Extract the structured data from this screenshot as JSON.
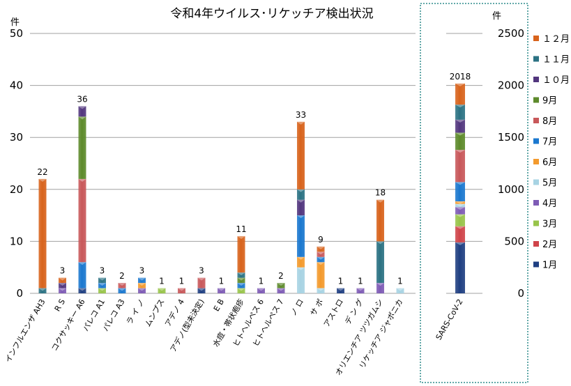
{
  "chart_data": [
    {
      "type": "bar",
      "stacked": true,
      "title": "令和4年ウイルス･リケッチア検出状況",
      "ylabel": "件",
      "ylim": [
        0,
        50
      ],
      "yticks": [
        0,
        10,
        20,
        30,
        40,
        50
      ],
      "grid": true,
      "categories": [
        "インフルエンザ AH3",
        "R S",
        "コクサッキー A6",
        "パレコ A1",
        "パレコ A3",
        "ラ イ ノ",
        "ムンプス",
        "アデノ 4",
        "アデノ(型未決定)",
        "E B",
        "水痘・帯状疱疹",
        "ヒトヘルペス 6",
        "ヒトヘルペス 7",
        "ノ ロ",
        "サ ポ",
        "アストロ",
        "デ ン グ",
        "オリエンチア ツツガムシ",
        "リケッチア ジャポニカ"
      ],
      "totals": [
        22,
        3,
        36,
        3,
        2,
        3,
        1,
        1,
        3,
        1,
        11,
        1,
        2,
        33,
        9,
        1,
        1,
        18,
        1
      ],
      "series": [
        {
          "name": "1月",
          "values": [
            0,
            0,
            1,
            0,
            0,
            0,
            0,
            0,
            1,
            0,
            0,
            0,
            0,
            0,
            0,
            1,
            0,
            0,
            0
          ]
        },
        {
          "name": "2月",
          "values": [
            0,
            0,
            0,
            0,
            0,
            0,
            0,
            0,
            0,
            0,
            0,
            0,
            0,
            0,
            0,
            0,
            0,
            0,
            0
          ]
        },
        {
          "name": "3月",
          "values": [
            0,
            0,
            0,
            1,
            0,
            0,
            1,
            0,
            0,
            0,
            1,
            0,
            0,
            0,
            0,
            0,
            0,
            0,
            0
          ]
        },
        {
          "name": "4月",
          "values": [
            0,
            1,
            0,
            0,
            0,
            1,
            0,
            0,
            0,
            1,
            0,
            1,
            1,
            0,
            0,
            0,
            1,
            2,
            0
          ]
        },
        {
          "name": "5月",
          "values": [
            0,
            0,
            0,
            0,
            0,
            0,
            0,
            0,
            0,
            0,
            0,
            0,
            0,
            5,
            1,
            0,
            0,
            0,
            1
          ]
        },
        {
          "name": "6月",
          "values": [
            0,
            0,
            0,
            0,
            0,
            1,
            0,
            0,
            0,
            0,
            0,
            0,
            0,
            2,
            5,
            0,
            0,
            0,
            0
          ]
        },
        {
          "name": "7月",
          "values": [
            0,
            0,
            5,
            1,
            1,
            1,
            0,
            0,
            0,
            0,
            1,
            0,
            0,
            8,
            1,
            0,
            0,
            0,
            0
          ]
        },
        {
          "name": "8月",
          "values": [
            0,
            0,
            16,
            0,
            1,
            0,
            0,
            1,
            2,
            0,
            0,
            0,
            0,
            0,
            1,
            0,
            0,
            0,
            0
          ]
        },
        {
          "name": "9月",
          "values": [
            0,
            0,
            12,
            0,
            0,
            0,
            0,
            0,
            0,
            0,
            1,
            0,
            1,
            0,
            0,
            0,
            0,
            0,
            0
          ]
        },
        {
          "name": "10月",
          "values": [
            0,
            1,
            2,
            0,
            0,
            0,
            0,
            0,
            0,
            0,
            0,
            0,
            0,
            3,
            0,
            0,
            0,
            0,
            0
          ]
        },
        {
          "name": "11月",
          "values": [
            1,
            0,
            0,
            1,
            0,
            0,
            0,
            0,
            0,
            0,
            1,
            0,
            0,
            2,
            0,
            0,
            0,
            8,
            0
          ]
        },
        {
          "name": "12月",
          "values": [
            21,
            1,
            0,
            0,
            0,
            0,
            0,
            0,
            0,
            0,
            7,
            0,
            0,
            13,
            1,
            0,
            0,
            8,
            0
          ]
        }
      ]
    },
    {
      "type": "bar",
      "stacked": true,
      "title": "",
      "ylabel": "件",
      "ylim": [
        0,
        2500
      ],
      "yticks": [
        0,
        500,
        1000,
        1500,
        2000,
        2500
      ],
      "categories": [
        "SARS-CoV-2"
      ],
      "totals": [
        2018
      ],
      "series": [
        {
          "name": "1月",
          "values": [
            490
          ]
        },
        {
          "name": "2月",
          "values": [
            155
          ]
        },
        {
          "name": "3月",
          "values": [
            115
          ]
        },
        {
          "name": "4月",
          "values": [
            70
          ]
        },
        {
          "name": "5月",
          "values": [
            30
          ]
        },
        {
          "name": "6月",
          "values": [
            25
          ]
        },
        {
          "name": "7月",
          "values": [
            185
          ]
        },
        {
          "name": "8月",
          "values": [
            310
          ]
        },
        {
          "name": "9月",
          "values": [
            165
          ]
        },
        {
          "name": "10月",
          "values": [
            125
          ]
        },
        {
          "name": "11月",
          "values": [
            145
          ]
        },
        {
          "name": "12月",
          "values": [
            203
          ]
        }
      ]
    }
  ],
  "legend": {
    "placement": "right",
    "order": [
      "12月",
      "11月",
      "10月",
      "9月",
      "8月",
      "7月",
      "6月",
      "5月",
      "4月",
      "3月",
      "2月",
      "1月"
    ],
    "labels": [
      "１２月",
      "１１月",
      "１０月",
      "9月",
      "8月",
      "7月",
      "6月",
      "5月",
      "4月",
      "3月",
      "2月",
      "1月"
    ]
  },
  "colors": {
    "1月": "#1f3f82",
    "2月": "#d0444a",
    "3月": "#98c44a",
    "4月": "#7e5bb5",
    "5月": "#a7d3e3",
    "6月": "#f39a2d",
    "7月": "#1b78cf",
    "8月": "#c8585a",
    "9月": "#5d8a2b",
    "10月": "#52367e",
    "11月": "#2b7283",
    "12月": "#d8631c"
  }
}
